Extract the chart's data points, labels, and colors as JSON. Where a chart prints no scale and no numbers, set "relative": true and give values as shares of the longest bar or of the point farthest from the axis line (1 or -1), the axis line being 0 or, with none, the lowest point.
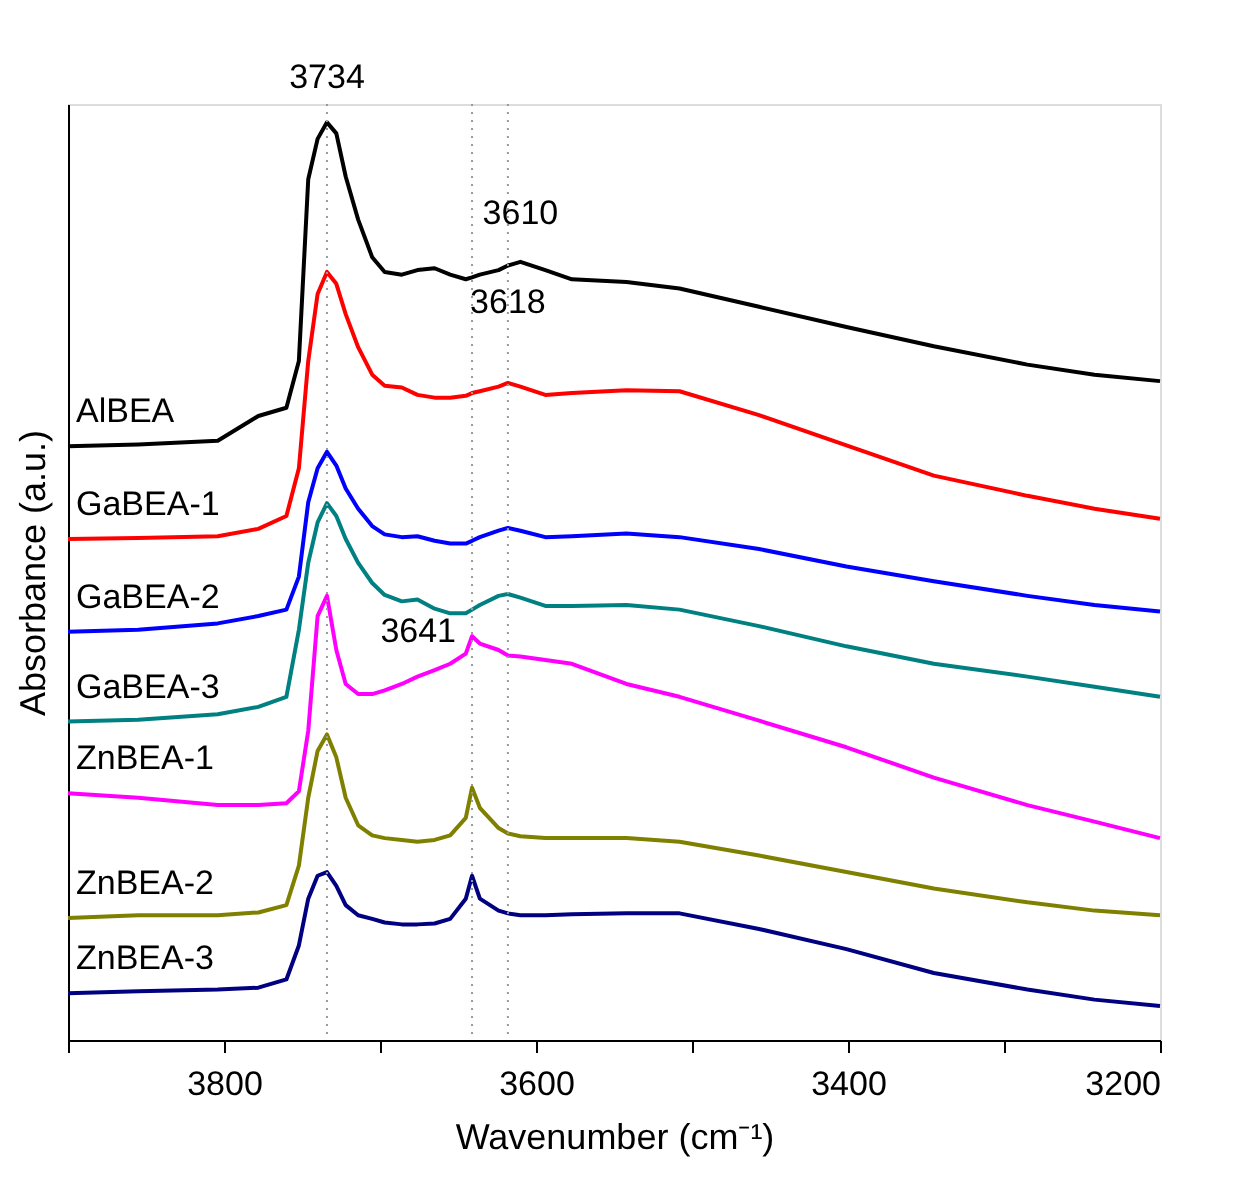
{
  "chart_data": {
    "type": "line",
    "relative": true,
    "xlabel": "Wavenumber (cm⁻¹)",
    "ylabel": "Absorbance (a.u.)",
    "line_style": "solid",
    "marker": "none",
    "xlim": [
      3900,
      3200
    ],
    "xticks": [
      {
        "value": 3900,
        "label": null
      },
      3800,
      {
        "value": 3700,
        "label": null
      },
      3600,
      {
        "value": 3500,
        "label": null
      },
      3400,
      {
        "value": 3300,
        "label": null
      },
      3200
    ],
    "x": [
      3900,
      3855,
      3804,
      3778,
      3760,
      3752,
      3746,
      3740,
      3734,
      3728,
      3722,
      3714,
      3705,
      3697,
      3686,
      3676,
      3665,
      3655,
      3645,
      3641,
      3636,
      3624,
      3618,
      3610,
      3594,
      3577,
      3542,
      3508,
      3457,
      3401,
      3345,
      3285,
      3242,
      3200
    ],
    "series": [
      {
        "name": "AlBEA",
        "color": "#000000",
        "values": [
          0.647,
          0.649,
          0.653,
          0.68,
          0.689,
          0.74,
          0.938,
          0.982,
          1.0,
          0.988,
          0.941,
          0.894,
          0.853,
          0.837,
          0.834,
          0.839,
          0.841,
          0.834,
          0.829,
          0.831,
          0.834,
          0.839,
          0.844,
          0.848,
          0.839,
          0.829,
          0.826,
          0.819,
          0.799,
          0.777,
          0.756,
          0.736,
          0.725,
          0.718
        ]
      },
      {
        "name": "GaBEA-1",
        "color": "#ff0000",
        "values": [
          0.546,
          0.547,
          0.549,
          0.557,
          0.571,
          0.623,
          0.74,
          0.813,
          0.837,
          0.824,
          0.791,
          0.755,
          0.725,
          0.713,
          0.711,
          0.703,
          0.7,
          0.7,
          0.702,
          0.705,
          0.707,
          0.712,
          0.716,
          0.712,
          0.703,
          0.705,
          0.708,
          0.707,
          0.681,
          0.648,
          0.615,
          0.593,
          0.579,
          0.568
        ]
      },
      {
        "name": "GaBEA-2",
        "color": "#0000ff",
        "values": [
          0.445,
          0.447,
          0.454,
          0.462,
          0.469,
          0.505,
          0.586,
          0.623,
          0.641,
          0.626,
          0.601,
          0.579,
          0.56,
          0.551,
          0.548,
          0.549,
          0.544,
          0.541,
          0.541,
          0.544,
          0.548,
          0.555,
          0.558,
          0.555,
          0.548,
          0.549,
          0.552,
          0.548,
          0.535,
          0.516,
          0.5,
          0.484,
          0.474,
          0.467
        ]
      },
      {
        "name": "GaBEA-3",
        "color": "#008080",
        "values": [
          0.347,
          0.349,
          0.355,
          0.363,
          0.374,
          0.447,
          0.52,
          0.564,
          0.585,
          0.571,
          0.546,
          0.52,
          0.498,
          0.485,
          0.478,
          0.48,
          0.47,
          0.465,
          0.465,
          0.469,
          0.474,
          0.484,
          0.486,
          0.482,
          0.473,
          0.473,
          0.474,
          0.469,
          0.451,
          0.429,
          0.41,
          0.396,
          0.385,
          0.374
        ]
      },
      {
        "name": "ZnBEA-1",
        "color": "#ff00ff",
        "values": [
          0.269,
          0.264,
          0.256,
          0.256,
          0.258,
          0.271,
          0.337,
          0.462,
          0.484,
          0.425,
          0.388,
          0.377,
          0.377,
          0.381,
          0.388,
          0.396,
          0.403,
          0.41,
          0.421,
          0.44,
          0.432,
          0.425,
          0.419,
          0.418,
          0.414,
          0.41,
          0.388,
          0.374,
          0.348,
          0.319,
          0.286,
          0.256,
          0.238,
          0.22
        ]
      },
      {
        "name": "ZnBEA-2",
        "color": "#808000",
        "values": [
          0.133,
          0.136,
          0.136,
          0.139,
          0.147,
          0.19,
          0.264,
          0.315,
          0.333,
          0.308,
          0.264,
          0.234,
          0.223,
          0.22,
          0.218,
          0.216,
          0.218,
          0.223,
          0.242,
          0.275,
          0.253,
          0.231,
          0.225,
          0.222,
          0.22,
          0.22,
          0.22,
          0.216,
          0.201,
          0.183,
          0.165,
          0.15,
          0.141,
          0.136
        ]
      },
      {
        "name": "ZnBEA-3",
        "color": "#000080",
        "values": [
          0.051,
          0.053,
          0.055,
          0.057,
          0.066,
          0.103,
          0.154,
          0.179,
          0.183,
          0.168,
          0.147,
          0.136,
          0.132,
          0.128,
          0.126,
          0.126,
          0.127,
          0.132,
          0.154,
          0.179,
          0.154,
          0.141,
          0.138,
          0.136,
          0.136,
          0.137,
          0.138,
          0.138,
          0.121,
          0.099,
          0.073,
          0.055,
          0.044,
          0.037
        ]
      }
    ],
    "ref_lines": [
      {
        "axis": "x",
        "value": 3734,
        "label": "3734",
        "color": "#999999",
        "line_style": "dotted"
      },
      {
        "axis": "x",
        "value": 3618,
        "color": "#999999",
        "line_style": "dotted"
      },
      {
        "axis": "x",
        "value": 3641,
        "color": "#999999",
        "line_style": "dotted"
      }
    ],
    "annotations": [
      {
        "text": "3610",
        "x": 3610,
        "y": 0.848
      },
      {
        "text": "3618",
        "x": 3618,
        "y": 0.716
      },
      {
        "text": "3641",
        "x": 3641,
        "y": 0.44
      }
    ]
  }
}
